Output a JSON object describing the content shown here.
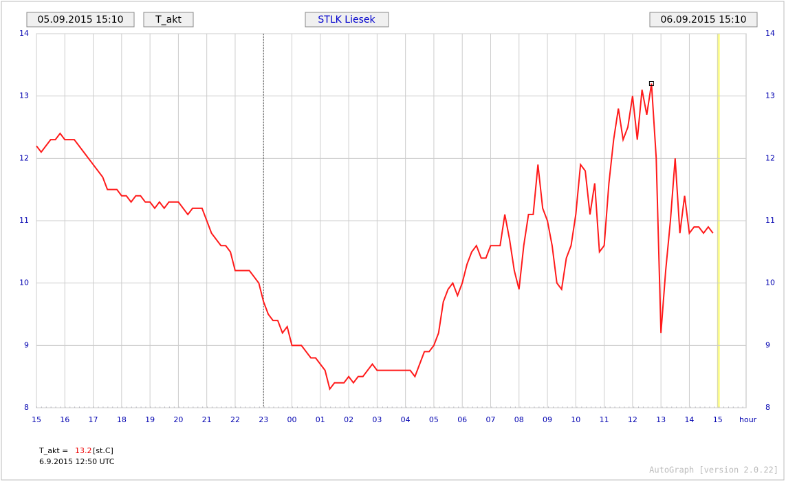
{
  "chart_data": {
    "type": "line",
    "header": {
      "start": "05.09.2015 15:10",
      "variable": "T_akt",
      "station": "STLK Liesek",
      "end": "06.09.2015 15:10"
    },
    "x_unit_label": "hour",
    "x": [
      0,
      10,
      30,
      40,
      50,
      60,
      80,
      140,
      150,
      170,
      180,
      190,
      200,
      210,
      220,
      230,
      240,
      250,
      260,
      270,
      280,
      300,
      320,
      330,
      350,
      370,
      390,
      400,
      410,
      420,
      450,
      470,
      480,
      490,
      500,
      510,
      520,
      530,
      540,
      560,
      580,
      590,
      610,
      620,
      630,
      650,
      660,
      670,
      680,
      690,
      710,
      720,
      790,
      800,
      820,
      830,
      840,
      850,
      860,
      870,
      880,
      890,
      900,
      910,
      920,
      930,
      940,
      950,
      960,
      980,
      990,
      1000,
      1010,
      1020,
      1030,
      1040,
      1050,
      1060,
      1070,
      1080,
      1090,
      1100,
      1110,
      1120,
      1130,
      1140,
      1150,
      1160,
      1170,
      1180,
      1190,
      1200,
      1210,
      1220,
      1230,
      1240,
      1250,
      1260,
      1270,
      1280,
      1290,
      1300,
      1310,
      1320,
      1330,
      1340,
      1350,
      1360,
      1370,
      1380,
      1390,
      1400,
      1410,
      1420,
      1430
    ],
    "series": [
      {
        "name": "T_akt",
        "color": "#ff1a1a",
        "values": [
          12.2,
          12.1,
          12.3,
          12.3,
          12.4,
          12.3,
          12.3,
          11.7,
          11.5,
          11.5,
          11.4,
          11.4,
          11.3,
          11.4,
          11.4,
          11.3,
          11.3,
          11.2,
          11.3,
          11.2,
          11.3,
          11.3,
          11.1,
          11.2,
          11.2,
          10.8,
          10.6,
          10.6,
          10.5,
          10.2,
          10.2,
          10.0,
          9.7,
          9.5,
          9.4,
          9.4,
          9.2,
          9.3,
          9.0,
          9.0,
          8.8,
          8.8,
          8.6,
          8.3,
          8.4,
          8.4,
          8.5,
          8.4,
          8.5,
          8.5,
          8.7,
          8.6,
          8.6,
          8.5,
          8.9,
          8.9,
          9.0,
          9.2,
          9.7,
          9.9,
          10.0,
          9.8,
          10.0,
          10.3,
          10.5,
          10.6,
          10.4,
          10.4,
          10.6,
          10.6,
          11.1,
          10.7,
          10.2,
          9.9,
          10.6,
          11.1,
          11.1,
          11.9,
          11.2,
          11.0,
          10.6,
          10.0,
          9.9,
          10.4,
          10.6,
          11.1,
          11.9,
          11.8,
          11.1,
          11.6,
          10.5,
          10.6,
          11.6,
          12.3,
          12.8,
          12.3,
          12.5,
          13.0,
          12.3,
          13.1,
          12.7,
          13.2,
          12.0,
          9.2,
          10.2,
          11.0,
          12.0,
          10.8,
          11.4,
          10.8,
          10.9,
          10.9,
          10.8,
          10.9,
          10.8
        ]
      }
    ],
    "marker": {
      "x": 1300,
      "y": 13.2
    },
    "xlim": [
      0,
      1500
    ],
    "ylim": [
      8,
      14
    ],
    "xticks": [
      {
        "value": 0,
        "label": "15"
      },
      {
        "value": 60,
        "label": "16"
      },
      {
        "value": 120,
        "label": "17"
      },
      {
        "value": 180,
        "label": "18"
      },
      {
        "value": 240,
        "label": "19"
      },
      {
        "value": 300,
        "label": "20"
      },
      {
        "value": 360,
        "label": "21"
      },
      {
        "value": 420,
        "label": "22"
      },
      {
        "value": 480,
        "label": "23"
      },
      {
        "value": 540,
        "label": "00"
      },
      {
        "value": 600,
        "label": "01"
      },
      {
        "value": 660,
        "label": "02"
      },
      {
        "value": 720,
        "label": "03"
      },
      {
        "value": 780,
        "label": "04"
      },
      {
        "value": 840,
        "label": "05"
      },
      {
        "value": 900,
        "label": "06"
      },
      {
        "value": 960,
        "label": "07"
      },
      {
        "value": 1020,
        "label": "08"
      },
      {
        "value": 1080,
        "label": "09"
      },
      {
        "value": 1140,
        "label": "10"
      },
      {
        "value": 1200,
        "label": "11"
      },
      {
        "value": 1260,
        "label": "12"
      },
      {
        "value": 1320,
        "label": "13"
      },
      {
        "value": 1380,
        "label": "14"
      },
      {
        "value": 1440,
        "label": "15"
      }
    ],
    "yticks": [
      8,
      9,
      10,
      11,
      12,
      13,
      14
    ],
    "day_change_x": 480,
    "now_x": 1440,
    "grid": true,
    "readout": {
      "label": "T_akt =",
      "value": 13.2,
      "unit": "[st.C]",
      "time": "6.9.2015 12:50 UTC"
    },
    "footer": "AutoGraph [version 2.0.22]"
  }
}
